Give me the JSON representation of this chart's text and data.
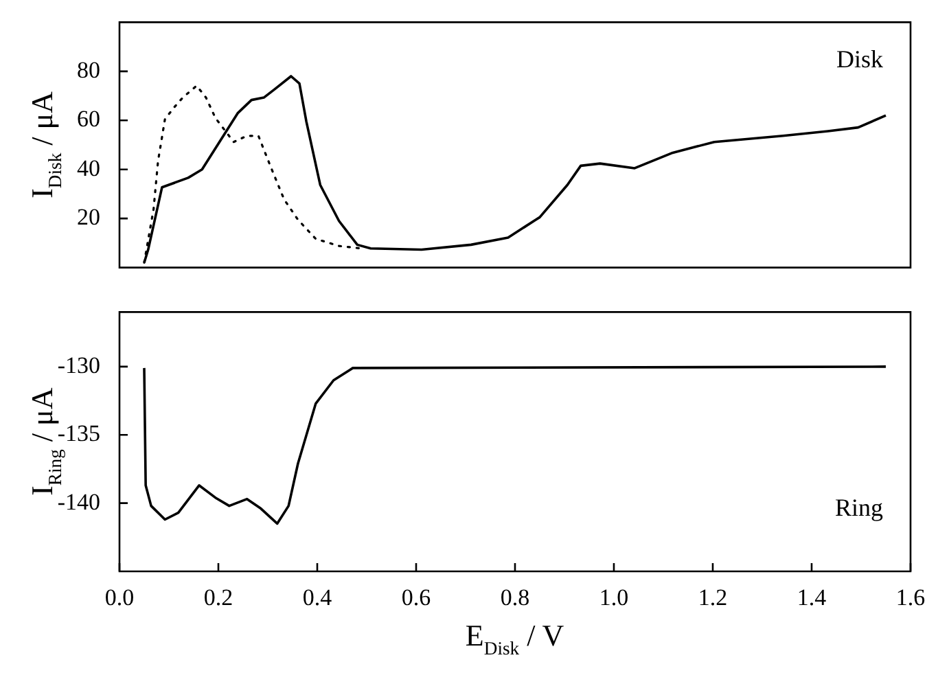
{
  "chart_data": [
    {
      "type": "line",
      "ylabel": "I$_{Disk}$ / μA",
      "annotations": [
        "Disk"
      ],
      "xlim": [
        0,
        1.6
      ],
      "xticks": [
        0,
        0.2,
        0.4,
        0.6,
        0.8,
        1.0,
        1.2,
        1.4,
        1.6
      ],
      "ylim": [
        0,
        100
      ],
      "yticks": [
        20,
        40,
        60,
        80
      ],
      "tick_labels": "y",
      "grid": false,
      "legend": false,
      "marker": "none",
      "series": [
        {
          "color": "#000000",
          "line_style": "solid",
          "x": [
            0.05,
            0.058,
            0.086,
            0.139,
            0.167,
            0.239,
            0.267,
            0.292,
            0.314,
            0.347,
            0.364,
            0.378,
            0.406,
            0.444,
            0.481,
            0.508,
            0.611,
            0.711,
            0.786,
            0.842,
            0.85,
            0.906,
            0.933,
            0.972,
            1.042,
            1.119,
            1.203,
            1.342,
            1.433,
            1.494,
            1.55
          ],
          "values": [
            2,
            7.3,
            32.7,
            36.6,
            40,
            62.9,
            68.3,
            69.3,
            72.7,
            78,
            75,
            59.5,
            33.7,
            19,
            9.3,
            7.8,
            7.3,
            9.3,
            12.2,
            19.5,
            20.5,
            33.7,
            41.5,
            42.4,
            40.5,
            46.8,
            51.2,
            53.7,
            55.6,
            57.1,
            62
          ]
        },
        {
          "color": "#000000",
          "line_style": "dotted",
          "x": [
            0.05,
            0.069,
            0.078,
            0.092,
            0.111,
            0.128,
            0.156,
            0.175,
            0.194,
            0.231,
            0.258,
            0.281,
            0.306,
            0.333,
            0.361,
            0.397,
            0.444,
            0.489
          ],
          "values": [
            2,
            23.9,
            43.4,
            60.5,
            65.4,
            69.3,
            74.1,
            69.3,
            61,
            51.2,
            53.7,
            53.7,
            41,
            27.8,
            19.5,
            11.7,
            8.8,
            7.8
          ]
        }
      ]
    },
    {
      "type": "line",
      "xlabel": "E$_{Disk}$ / V",
      "ylabel": "I$_{Ring}$ / μA",
      "annotations": [
        "Ring"
      ],
      "xlim": [
        0,
        1.6
      ],
      "xticks": [
        {
          "value": 0,
          "label": "0.0"
        },
        0.2,
        0.4,
        0.6,
        0.8,
        {
          "value": 1,
          "label": "1.0"
        },
        1.2,
        1.4,
        1.6
      ],
      "ylim": [
        -145,
        -126
      ],
      "yticks": [
        -140,
        -135,
        -130
      ],
      "grid": false,
      "legend": false,
      "marker": "none",
      "series": [
        {
          "color": "#000000",
          "line_style": "solid",
          "x": [
            0.05,
            0.053,
            0.064,
            0.092,
            0.119,
            0.161,
            0.194,
            0.222,
            0.258,
            0.286,
            0.319,
            0.342,
            0.361,
            0.397,
            0.433,
            0.472,
            1.55
          ],
          "values": [
            -130.1,
            -138.7,
            -140.2,
            -141.2,
            -140.7,
            -138.7,
            -139.6,
            -140.2,
            -139.7,
            -140.4,
            -141.5,
            -140.2,
            -137.1,
            -132.7,
            -131,
            -130.1,
            -130
          ]
        }
      ]
    }
  ]
}
